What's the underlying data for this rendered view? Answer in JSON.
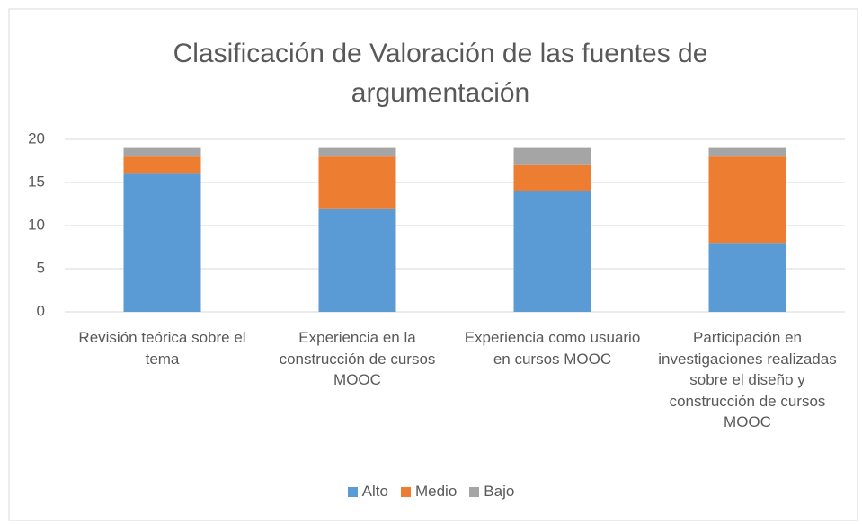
{
  "chart_data": {
    "type": "stacked_bar",
    "title": "Clasificación  de Valoración de las fuentes de argumentación",
    "categories": [
      "Revisión teórica sobre el tema",
      "Experiencia en la construcción de cursos MOOC",
      "Experiencia como usuario en cursos MOOC",
      "Participación en investigaciones realizadas sobre el diseño y construcción de cursos MOOC"
    ],
    "series": [
      {
        "name": "Alto",
        "color": "#5b9bd5",
        "values": [
          16,
          12,
          14,
          8
        ]
      },
      {
        "name": "Medio",
        "color": "#ed7d31",
        "values": [
          2,
          6,
          3,
          10
        ]
      },
      {
        "name": "Bajo",
        "color": "#a5a5a5",
        "values": [
          1,
          1,
          2,
          1
        ]
      }
    ],
    "ylim": [
      0,
      20
    ],
    "yticks": [
      0,
      5,
      10,
      15,
      20
    ],
    "grid": true,
    "legend": "bottom"
  }
}
